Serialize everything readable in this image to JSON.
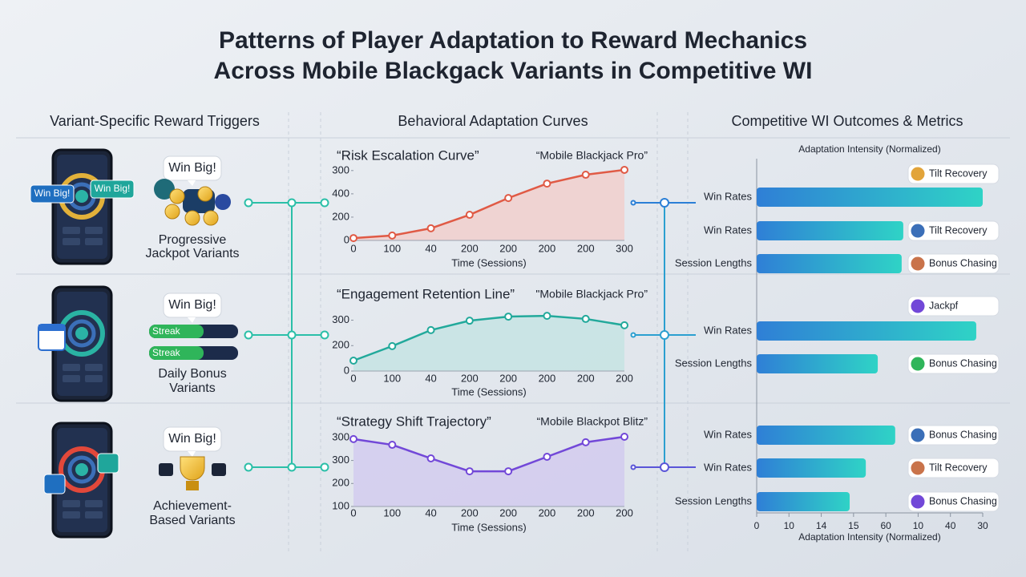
{
  "title": [
    "Patterns of Player Adaptation to Reward Mechanics",
    "Across Mobile Blackgack Variants in Competitive WI"
  ],
  "columns": [
    "Variant-Specific Reward Triggers",
    "Behavioral Adaptation Curves",
    "Competitive WI Outcomes & Metrics"
  ],
  "variants": [
    {
      "bubble": "Win Big!",
      "phone_badges": [
        "Win Big!",
        "Win Big!"
      ],
      "label": [
        "Progressive",
        "Jackpot Variants"
      ]
    },
    {
      "bubble": "Win Big!",
      "streaks": [
        "Streak",
        "Streak"
      ],
      "label": [
        "Daily Bonus",
        "Variants"
      ]
    },
    {
      "bubble": "Win Big!",
      "label": [
        "Achievement-",
        "Based Variants"
      ]
    }
  ],
  "chart_data": [
    {
      "type": "line",
      "title": "“Risk Escalation Curve”",
      "subtitle": "“Mobile Blackjack Pro”",
      "xlabel": "Time (Sessions)",
      "categories": [
        "0",
        "100",
        "40",
        "200",
        "200",
        "200",
        "200",
        "300"
      ],
      "values": [
        10,
        21,
        52,
        110,
        182,
        244,
        282,
        303
      ],
      "color": "#e05a45",
      "fill": "#f1cfcd",
      "ylim": [
        0,
        320
      ],
      "yticks": [
        0,
        {
          "value": 100,
          "label": "200"
        },
        {
          "value": 200,
          "label": "400"
        },
        300
      ]
    },
    {
      "type": "line",
      "title": "“Engagement Retention Line”",
      "subtitle": "\"Mobile Blackjack Pro”",
      "xlabel": "Time (Sessions)",
      "categories": [
        "0",
        "100",
        "40",
        "200",
        "200",
        "200",
        "200",
        "200"
      ],
      "values": [
        41,
        98,
        161,
        198,
        214,
        217,
        205,
        180
      ],
      "color": "#22a99b",
      "fill": "#c5e3e3",
      "ylim": [
        0,
        230
      ],
      "yticks": [
        0,
        {
          "value": 100,
          "label": "200"
        },
        {
          "value": 200,
          "label": "300"
        }
      ]
    },
    {
      "type": "line",
      "title": "“Strategy Shift Trajectory”",
      "subtitle": "“Mobile Blackpot Blitz”",
      "xlabel": "Time (Sessions)",
      "categories": [
        "0",
        "100",
        "40",
        "200",
        "200",
        "200",
        "200",
        "200"
      ],
      "values": [
        293,
        268,
        209,
        153,
        153,
        216,
        279,
        303
      ],
      "color": "#7248d8",
      "fill": "#d2cbef",
      "ylim": [
        0,
        310
      ],
      "yticks": [
        {
          "value": 0,
          "label": "100"
        },
        {
          "value": 100,
          "label": "200"
        },
        {
          "value": 200,
          "label": "300"
        },
        300
      ]
    },
    {
      "type": "hbar",
      "xlabel": "Adaptation Intensity (Normalized)",
      "xlabel_top": "Adaptation Intensity (Normalized)",
      "xlim": [
        0,
        70
      ],
      "xticks": [
        0,
        10,
        {
          "value": 20,
          "label": "14"
        },
        {
          "value": 30,
          "label": "15"
        },
        {
          "value": 40,
          "label": "60"
        },
        {
          "value": 50,
          "label": "10"
        },
        {
          "value": 60,
          "label": "40"
        },
        {
          "value": 70,
          "label": "30"
        }
      ],
      "groups": [
        {
          "categories": [
            "Win Rates",
            "Win Rates",
            "Session Lengths"
          ],
          "values": [
            70,
            45.4,
            44.9
          ],
          "tags": [
            "Tilt Recovery",
            "Tilt Recovery",
            "Bonus Chasing"
          ]
        },
        {
          "categories": [
            "Win Rates",
            "Session Lengths"
          ],
          "values": [
            68,
            37.5
          ],
          "tags": [
            "Jackpf",
            "Bonus Chasing"
          ]
        },
        {
          "categories": [
            "Win Rates",
            "Win Rates",
            "Session Lengths"
          ],
          "values": [
            42.9,
            33.8,
            28.8
          ],
          "tags": [
            "Bonus Chasing",
            "Tilt Recovery",
            "Bonus Chasing"
          ]
        }
      ]
    }
  ]
}
